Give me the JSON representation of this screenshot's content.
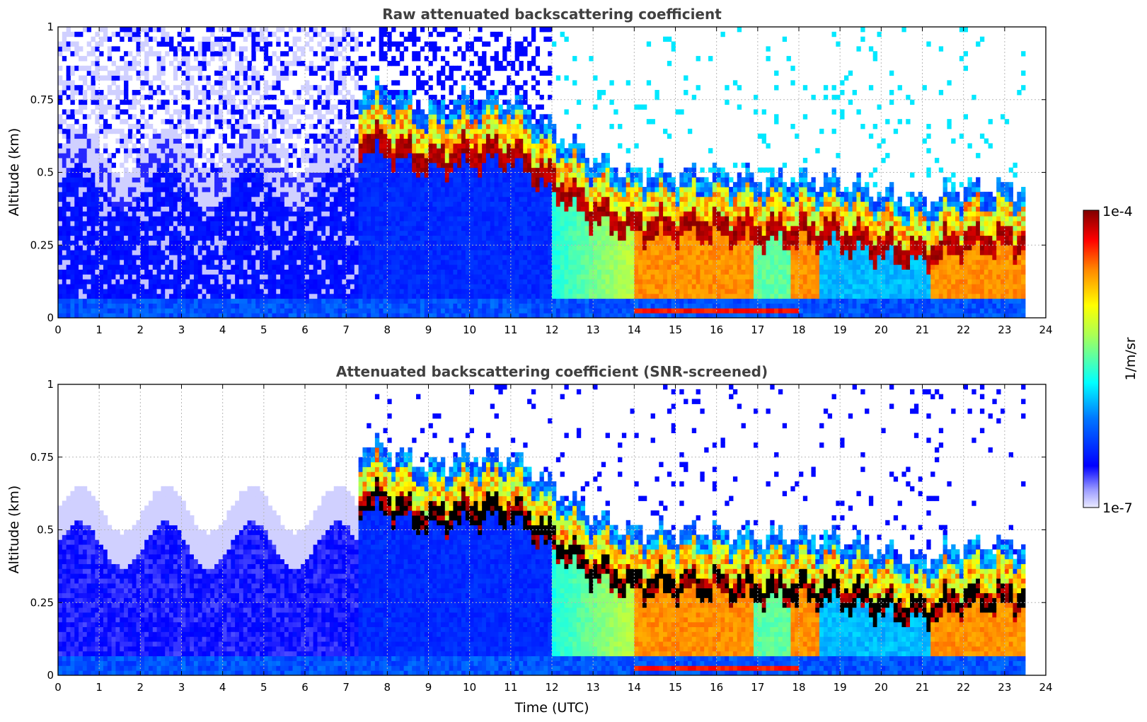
{
  "chart_data": [
    {
      "type": "heatmap",
      "title": "Raw attenuated backscattering coefficient",
      "xlabel": "",
      "ylabel": "Altitude (km)",
      "xlim": [
        0,
        24
      ],
      "ylim": [
        0,
        1
      ],
      "xticks": [
        "0",
        "1",
        "2",
        "3",
        "4",
        "5",
        "6",
        "7",
        "8",
        "9",
        "10",
        "11",
        "12",
        "13",
        "14",
        "15",
        "16",
        "17",
        "18",
        "19",
        "20",
        "21",
        "22",
        "23",
        "24"
      ],
      "yticks": [
        "0",
        "0.25",
        "0.5",
        "0.75",
        "1"
      ],
      "grid": true,
      "data_end_time": 23.5,
      "cloud_base_profile": {
        "time": [
          7.3,
          8.0,
          9.0,
          10.0,
          11.0,
          12.0,
          13.0,
          14.0,
          15.0,
          16.0,
          17.0,
          18.0,
          19.0,
          20.0,
          21.0,
          22.0,
          23.0,
          23.5
        ],
        "altitude": [
          0.6,
          0.58,
          0.52,
          0.55,
          0.56,
          0.45,
          0.35,
          0.3,
          0.3,
          0.3,
          0.28,
          0.28,
          0.27,
          0.23,
          0.2,
          0.25,
          0.25,
          0.25
        ]
      }
    },
    {
      "type": "heatmap",
      "title": "Attenuated backscattering coefficient (SNR-screened)",
      "xlabel": "Time (UTC)",
      "ylabel": "Altitude (km)",
      "xlim": [
        0,
        24
      ],
      "ylim": [
        0,
        1
      ],
      "xticks": [
        "0",
        "1",
        "2",
        "3",
        "4",
        "5",
        "6",
        "7",
        "8",
        "9",
        "10",
        "11",
        "12",
        "13",
        "14",
        "15",
        "16",
        "17",
        "18",
        "19",
        "20",
        "21",
        "22",
        "23",
        "24"
      ],
      "yticks": [
        "0",
        "0.25",
        "0.5",
        "0.75",
        "1"
      ],
      "grid": true,
      "data_end_time": 23.5
    }
  ],
  "colorbar": {
    "label": "1/m/sr",
    "max_label": "1e-4",
    "min_label": "1e-7",
    "scale": "log",
    "colormap": [
      "#ebebff",
      "#0000ff",
      "#0088ff",
      "#00ffff",
      "#ffff00",
      "#ff8800",
      "#ff0000",
      "#800000"
    ]
  }
}
